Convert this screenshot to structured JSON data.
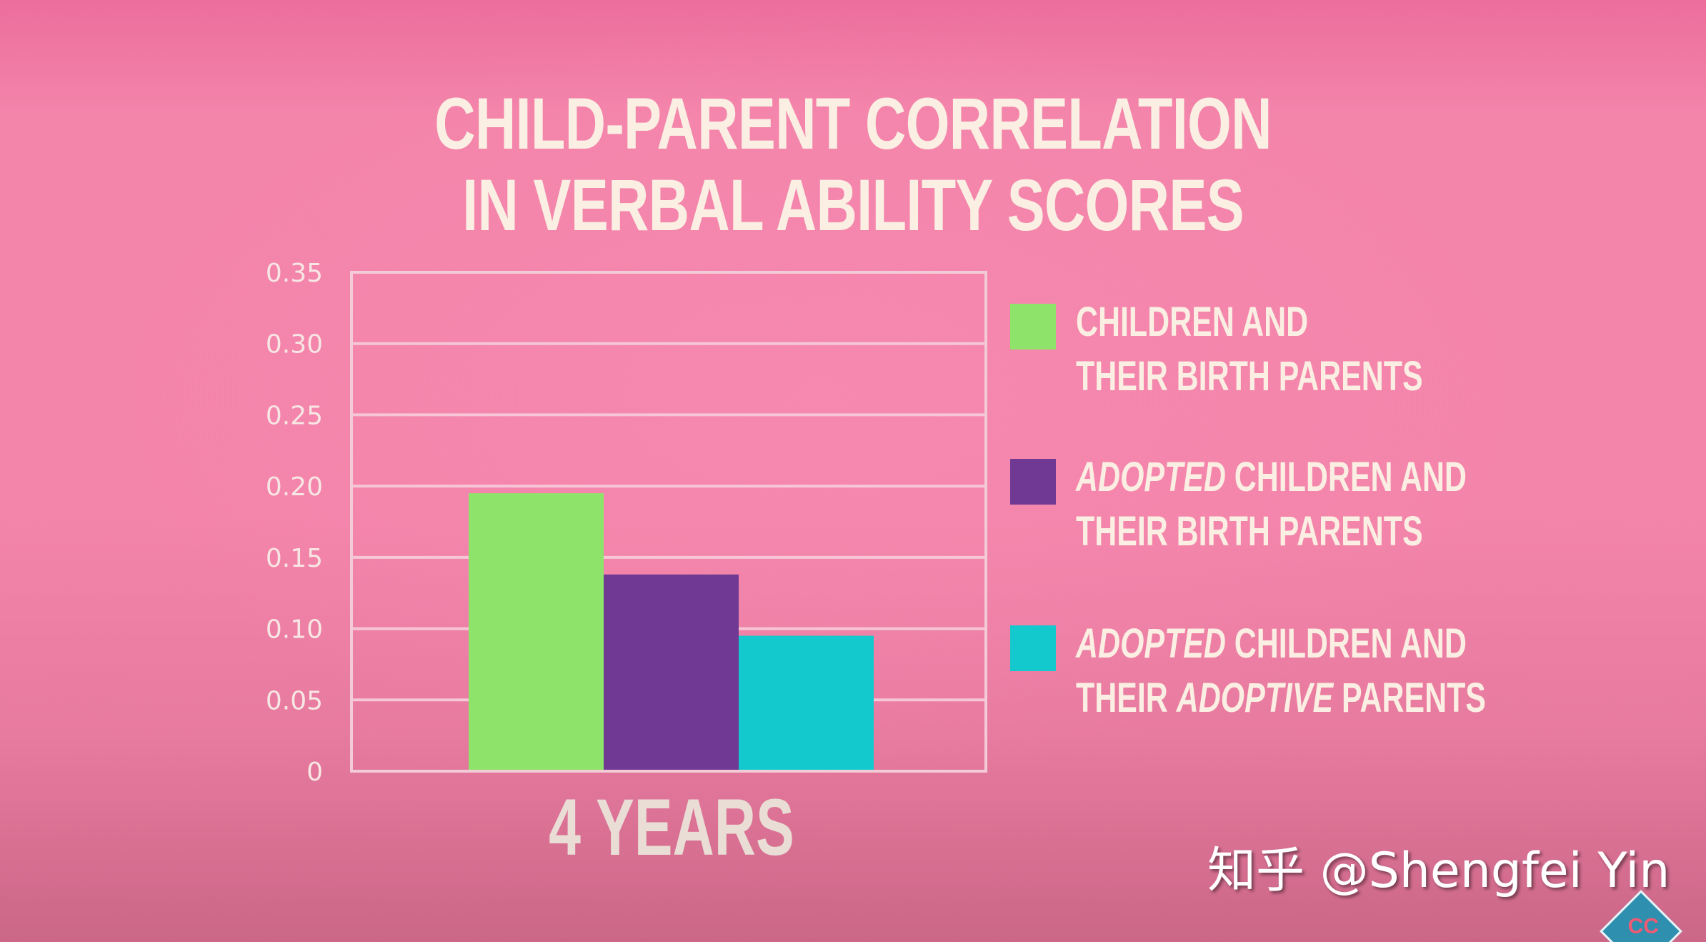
{
  "chart_data": {
    "type": "bar",
    "title": [
      "CHILD-PARENT CORRELATION",
      "IN VERBAL ABILITY SCORES"
    ],
    "categories": [
      "4 YEARS"
    ],
    "ylim": [
      0,
      0.35
    ],
    "yticks": [
      "0",
      "0.05",
      "0.10",
      "0.15",
      "0.20",
      "0.25",
      "0.30",
      "0.35"
    ],
    "ytick_values": [
      0,
      0.05,
      0.1,
      0.15,
      0.2,
      0.25,
      0.3,
      0.35
    ],
    "grid": true,
    "legend_position": "right",
    "series": [
      {
        "name": "CHILDREN AND THEIR BIRTH PARENTS",
        "color": "#8ee46a",
        "values": [
          0.195
        ]
      },
      {
        "name": "ADOPTED CHILDREN AND THEIR BIRTH PARENTS",
        "color": "#703a94",
        "values": [
          0.138
        ]
      },
      {
        "name": "ADOPTED CHILDREN AND THEIR ADOPTIVE PARENTS",
        "color": "#14c9cd",
        "values": [
          0.095
        ]
      }
    ]
  },
  "legend": [
    {
      "swatch_color": "#8ee46a",
      "line1_italic": "",
      "line1_rest": "CHILDREN AND",
      "line2_pre": "THEIR BIRTH PARENTS",
      "line2_italic": "",
      "line2_post": ""
    },
    {
      "swatch_color": "#703a94",
      "line1_italic": "ADOPTED",
      "line1_rest": " CHILDREN AND",
      "line2_pre": "THEIR BIRTH PARENTS",
      "line2_italic": "",
      "line2_post": ""
    },
    {
      "swatch_color": "#14c9cd",
      "line1_italic": "ADOPTED",
      "line1_rest": " CHILDREN AND",
      "line2_pre": "THEIR ",
      "line2_italic": "ADOPTIVE",
      "line2_post": " PARENTS"
    }
  ],
  "watermark": "知乎 @Shengfei Yin",
  "logo_text": "CC"
}
